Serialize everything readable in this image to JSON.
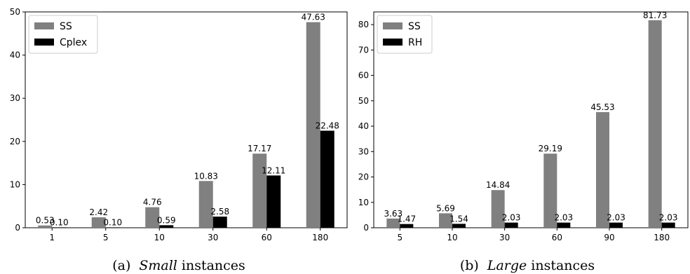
{
  "chart_data": [
    {
      "type": "bar",
      "caption_prefix": "(a)",
      "caption_emph": "Small",
      "caption_rest": "instances",
      "categories": [
        "1",
        "5",
        "10",
        "30",
        "60",
        "180"
      ],
      "series": [
        {
          "name": "SS",
          "color": "#808080",
          "values": [
            0.53,
            2.42,
            4.76,
            10.83,
            17.17,
            47.63
          ],
          "labels": [
            "0.53",
            "2.42",
            "4.76",
            "10.83",
            "17.17",
            "47.63"
          ]
        },
        {
          "name": "Cplex",
          "color": "#000000",
          "values": [
            0.1,
            0.1,
            0.59,
            2.58,
            12.11,
            22.48
          ],
          "labels": [
            "0.10",
            "0.10",
            "0.59",
            "2.58",
            "12.11",
            "22.48"
          ]
        }
      ],
      "ylim": [
        0,
        50
      ],
      "yticks": [
        "0",
        "10",
        "20",
        "30",
        "40",
        "50"
      ],
      "legend": "top-left",
      "grid": false
    },
    {
      "type": "bar",
      "caption_prefix": "(b)",
      "caption_emph": "Large",
      "caption_rest": "instances",
      "categories": [
        "5",
        "10",
        "30",
        "60",
        "90",
        "180"
      ],
      "series": [
        {
          "name": "SS",
          "color": "#808080",
          "values": [
            3.63,
            5.69,
            14.84,
            29.19,
            45.53,
            81.73
          ],
          "labels": [
            "3.63",
            "5.69",
            "14.84",
            "29.19",
            "45.53",
            "81.73"
          ]
        },
        {
          "name": "RH",
          "color": "#000000",
          "values": [
            1.47,
            1.54,
            2.03,
            2.03,
            2.03,
            2.03
          ],
          "labels": [
            "1.47",
            "1.54",
            "2.03",
            "2.03",
            "2.03",
            "2.03"
          ]
        }
      ],
      "ylim": [
        0,
        85
      ],
      "yticks": [
        "0",
        "10",
        "20",
        "30",
        "40",
        "50",
        "60",
        "70",
        "80"
      ],
      "legend": "top-left",
      "grid": false
    }
  ]
}
